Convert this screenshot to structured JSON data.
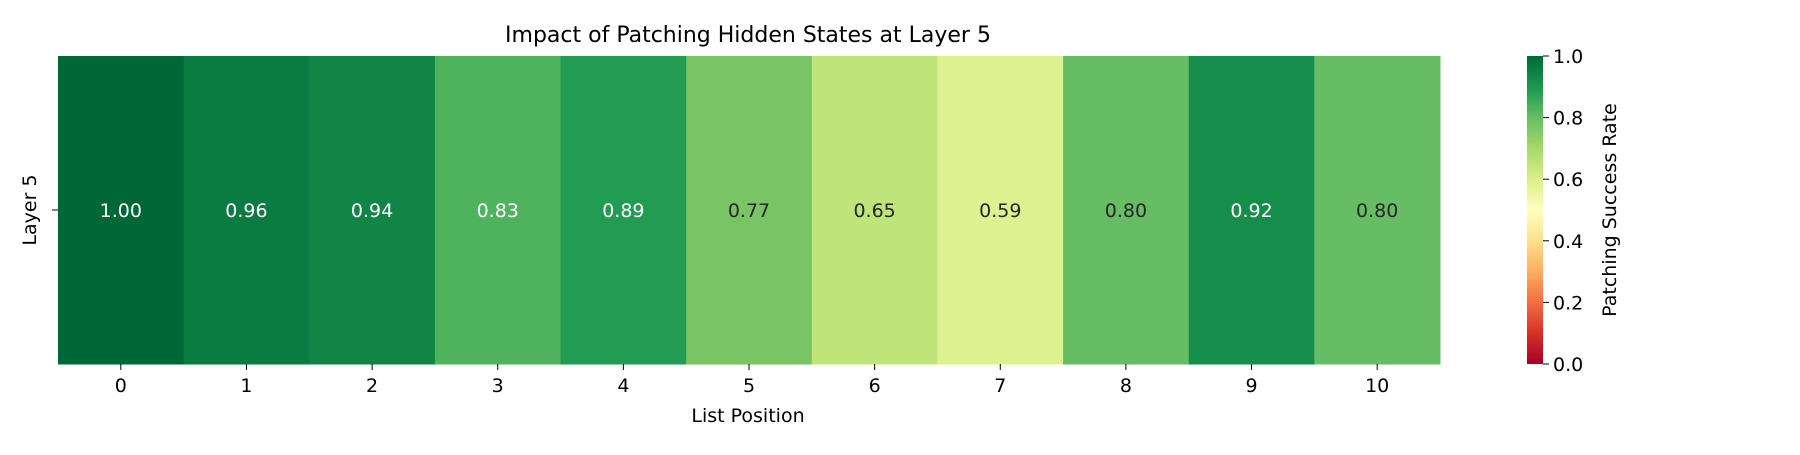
{
  "chart_data": {
    "type": "heatmap",
    "title": "Impact of Patching Hidden States at Layer 5",
    "xlabel": "List Position",
    "ylabel": "",
    "x_categories": [
      "0",
      "1",
      "2",
      "3",
      "4",
      "5",
      "6",
      "7",
      "8",
      "9",
      "10"
    ],
    "y_categories": [
      "Layer 5"
    ],
    "values": [
      [
        1.0,
        0.96,
        0.94,
        0.83,
        0.89,
        0.77,
        0.65,
        0.59,
        0.8,
        0.92,
        0.8
      ]
    ],
    "annotation_format": "2 decimals",
    "colormap": "RdYlGn",
    "vmin": 0.0,
    "vmax": 1.0,
    "colorbar": {
      "label": "Patching Success Rate",
      "ticks": [
        "0.0",
        "0.2",
        "0.4",
        "0.6",
        "0.8",
        "1.0"
      ],
      "placement": "right"
    },
    "grid": false
  }
}
